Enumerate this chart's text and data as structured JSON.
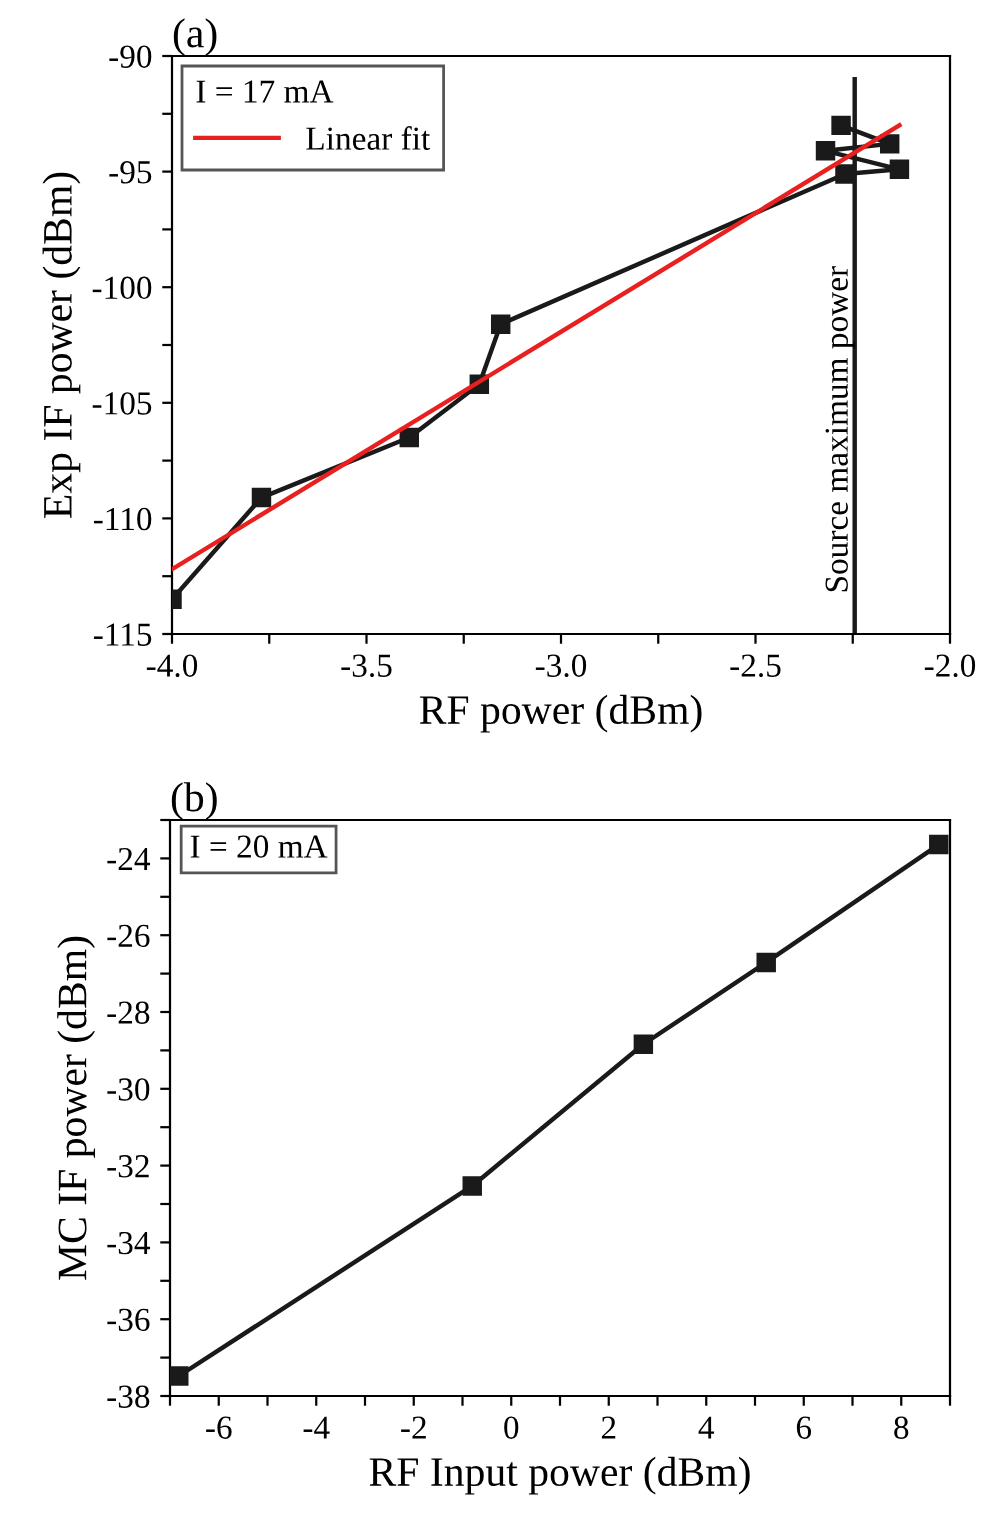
{
  "chart_data": [
    {
      "type": "line",
      "title": "(a)",
      "xlabel": "RF power (dBm)",
      "ylabel": "Exp IF power (dBm)",
      "legend_title": "I = 17 mA",
      "legend": "top left",
      "marker": "none",
      "grid": false,
      "xlim": [
        -4.0,
        -2.0
      ],
      "xticks": [
        {
          "value": -4,
          "label": "-4.0"
        },
        {
          "value": -3.75,
          "label": null
        },
        -3.5,
        {
          "value": -3.25,
          "label": null
        },
        {
          "value": -3,
          "label": "-3.0"
        },
        {
          "value": -2.75,
          "label": null
        },
        -2.5,
        {
          "value": -2.25,
          "label": null
        },
        {
          "value": -2,
          "label": "-2.0"
        }
      ],
      "ylim": [
        -115,
        -90
      ],
      "yticks": [
        -115,
        {
          "value": -112.5,
          "label": null
        },
        -110,
        {
          "value": -107.5,
          "label": null
        },
        -105,
        {
          "value": -102.5,
          "label": null
        },
        -100,
        {
          "value": -97.5,
          "label": null
        },
        -95,
        {
          "value": -92.5,
          "label": null
        },
        -90
      ],
      "series": [
        {
          "color": "#1a1a1a",
          "marker": "square",
          "x": [
            -4.0,
            -3.77,
            -3.39,
            -3.21,
            -3.155,
            -2.27,
            -2.13,
            -2.32,
            -2.155,
            -2.28
          ],
          "values": [
            -113.5,
            -109.1,
            -106.5,
            -104.2,
            -101.6,
            -95.1,
            -94.9,
            -94.1,
            -93.8,
            -93.0
          ]
        },
        {
          "name": "Linear fit",
          "color": "#e8201f",
          "x": [
            -4.0,
            -2.13
          ],
          "values": [
            -112.2,
            -93.0
          ]
        }
      ],
      "ref_lines": [
        {
          "axis": "x",
          "value": -2.245,
          "label": "Source maximum power",
          "color": "#1a1a1a"
        }
      ]
    },
    {
      "type": "line",
      "title": "(b)",
      "xlabel": "RF Input power (dBm)",
      "ylabel": "MC IF power (dBm)",
      "annotations": [
        "I = 20 mA"
      ],
      "marker": "square",
      "grid": false,
      "xlim": [
        -7,
        9
      ],
      "xticks": [
        {
          "value": -7,
          "label": null
        },
        -6,
        {
          "value": -5,
          "label": null
        },
        -4,
        {
          "value": -3,
          "label": null
        },
        -2,
        {
          "value": -1,
          "label": null
        },
        0,
        {
          "value": 1,
          "label": null
        },
        2,
        {
          "value": 3,
          "label": null
        },
        4,
        {
          "value": 5,
          "label": null
        },
        6,
        {
          "value": 7,
          "label": null
        },
        8,
        {
          "value": 9,
          "label": null
        }
      ],
      "ylim": [
        -38,
        -23
      ],
      "yticks": [
        -38,
        {
          "value": -37,
          "label": null
        },
        -36,
        {
          "value": -35,
          "label": null
        },
        -34,
        {
          "value": -33,
          "label": null
        },
        -32,
        {
          "value": -31,
          "label": null
        },
        -30,
        {
          "value": -29,
          "label": null
        },
        -28,
        {
          "value": -27,
          "label": null
        },
        -26,
        {
          "value": -25,
          "label": null
        },
        -24,
        {
          "value": -23,
          "label": null
        }
      ],
      "series": [
        {
          "color": "#1a1a1a",
          "x": [
            -6.82,
            -0.8,
            2.71,
            5.23,
            8.77
          ],
          "values": [
            -37.48,
            -32.53,
            -28.84,
            -26.71,
            -23.64
          ]
        }
      ]
    }
  ]
}
